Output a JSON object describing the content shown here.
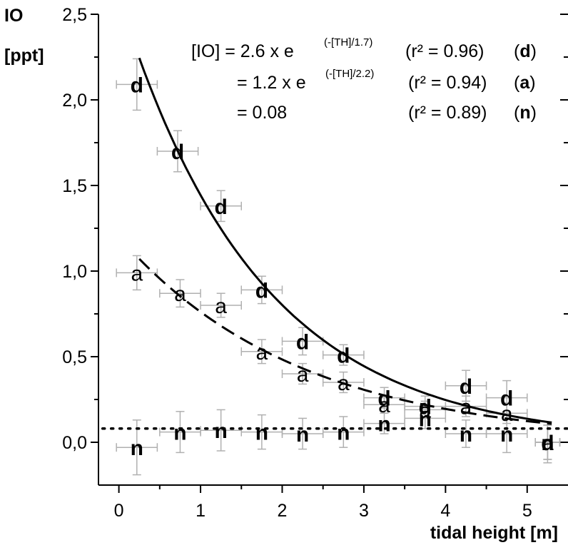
{
  "chart_data": {
    "type": "scatter",
    "ylabel_line1": "IO",
    "ylabel_line2": "[ppt]",
    "xlabel": "tidal height [m]",
    "xlim": [
      -0.25,
      5.5
    ],
    "ylim": [
      -0.25,
      2.5
    ],
    "x_ticks": [
      0,
      1,
      2,
      3,
      4,
      5
    ],
    "x_tick_labels": [
      "0",
      "1",
      "2",
      "3",
      "4",
      "5"
    ],
    "y_ticks": [
      0.0,
      0.5,
      1.0,
      1.5,
      2.0,
      2.5
    ],
    "y_tick_labels": [
      "0,0",
      "0,5",
      "1,0",
      "1,5",
      "2,0",
      "2,5"
    ],
    "series": [
      {
        "name": "d",
        "label": "d",
        "points": [
          {
            "x": 0.22,
            "y": 2.09,
            "xerr": 0.25,
            "yerr": 0.15
          },
          {
            "x": 0.72,
            "y": 1.7,
            "xerr": 0.25,
            "yerr": 0.12
          },
          {
            "x": 1.25,
            "y": 1.38,
            "xerr": 0.25,
            "yerr": 0.09
          },
          {
            "x": 1.75,
            "y": 0.89,
            "xerr": 0.25,
            "yerr": 0.08
          },
          {
            "x": 2.25,
            "y": 0.59,
            "xerr": 0.25,
            "yerr": 0.08
          },
          {
            "x": 2.75,
            "y": 0.51,
            "xerr": 0.25,
            "yerr": 0.06
          },
          {
            "x": 3.25,
            "y": 0.26,
            "xerr": 0.25,
            "yerr": 0.06
          },
          {
            "x": 3.75,
            "y": 0.21,
            "xerr": 0.25,
            "yerr": 0.06
          },
          {
            "x": 4.25,
            "y": 0.33,
            "xerr": 0.25,
            "yerr": 0.09
          },
          {
            "x": 4.75,
            "y": 0.26,
            "xerr": 0.25,
            "yerr": 0.1
          },
          {
            "x": 5.25,
            "y": 0.0,
            "xerr": 0.15,
            "yerr": 0.12
          }
        ]
      },
      {
        "name": "a",
        "label": "a",
        "points": [
          {
            "x": 0.22,
            "y": 0.99,
            "xerr": 0.25,
            "yerr": 0.1
          },
          {
            "x": 0.75,
            "y": 0.87,
            "xerr": 0.25,
            "yerr": 0.08
          },
          {
            "x": 1.25,
            "y": 0.8,
            "xerr": 0.25,
            "yerr": 0.07
          },
          {
            "x": 1.75,
            "y": 0.53,
            "xerr": 0.25,
            "yerr": 0.07
          },
          {
            "x": 2.25,
            "y": 0.4,
            "xerr": 0.25,
            "yerr": 0.06
          },
          {
            "x": 2.75,
            "y": 0.35,
            "xerr": 0.25,
            "yerr": 0.06
          },
          {
            "x": 3.25,
            "y": 0.22,
            "xerr": 0.25,
            "yerr": 0.05
          },
          {
            "x": 3.75,
            "y": 0.19,
            "xerr": 0.25,
            "yerr": 0.05
          },
          {
            "x": 4.25,
            "y": 0.21,
            "xerr": 0.25,
            "yerr": 0.06
          },
          {
            "x": 4.75,
            "y": 0.17,
            "xerr": 0.25,
            "yerr": 0.06
          },
          {
            "x": 5.25,
            "y": 0.0,
            "xerr": 0.15,
            "yerr": 0.1
          }
        ]
      },
      {
        "name": "n",
        "label": "n",
        "points": [
          {
            "x": 0.22,
            "y": -0.03,
            "xerr": 0.25,
            "yerr": 0.16
          },
          {
            "x": 0.75,
            "y": 0.06,
            "xerr": 0.25,
            "yerr": 0.12
          },
          {
            "x": 1.25,
            "y": 0.07,
            "xerr": 0.25,
            "yerr": 0.12
          },
          {
            "x": 1.75,
            "y": 0.06,
            "xerr": 0.25,
            "yerr": 0.1
          },
          {
            "x": 2.25,
            "y": 0.05,
            "xerr": 0.25,
            "yerr": 0.09
          },
          {
            "x": 2.75,
            "y": 0.06,
            "xerr": 0.25,
            "yerr": 0.09
          },
          {
            "x": 3.25,
            "y": 0.11,
            "xerr": 0.25,
            "yerr": 0.06
          },
          {
            "x": 3.75,
            "y": 0.14,
            "xerr": 0.25,
            "yerr": 0.06
          },
          {
            "x": 4.25,
            "y": 0.05,
            "xerr": 0.25,
            "yerr": 0.08
          },
          {
            "x": 4.75,
            "y": 0.05,
            "xerr": 0.25,
            "yerr": 0.11
          },
          {
            "x": 5.25,
            "y": 0.0,
            "xerr": 0.15,
            "yerr": 0.1
          }
        ]
      }
    ],
    "fits": [
      {
        "series": "d",
        "style": "solid",
        "model": "2.6*exp(-x/1.7)",
        "a": 2.6,
        "b": 1.7,
        "x_range": [
          0.25,
          5.3
        ]
      },
      {
        "series": "a",
        "style": "dashed",
        "model": "1.2*exp(-x/2.2)",
        "a": 1.2,
        "b": 2.2,
        "x_range": [
          0.25,
          5.3
        ]
      },
      {
        "series": "n",
        "style": "dotted",
        "model": "0.08",
        "value": 0.08,
        "x_range": [
          -0.2,
          5.5
        ]
      }
    ],
    "equations": [
      {
        "lhs": "[IO]  = ",
        "main": "2.6 x e",
        "sup": "(-[TH]/1.7)",
        "r2": "(r² = 0.96)",
        "tag": "d"
      },
      {
        "lhs": "= ",
        "main": "1.2 x e",
        "sup": "(-[TH]/2.2)",
        "r2": "(r² = 0.94)",
        "tag": "a"
      },
      {
        "lhs": "= ",
        "main": "0.08",
        "sup": "",
        "r2": "(r² = 0.89)",
        "tag": "n"
      }
    ]
  }
}
